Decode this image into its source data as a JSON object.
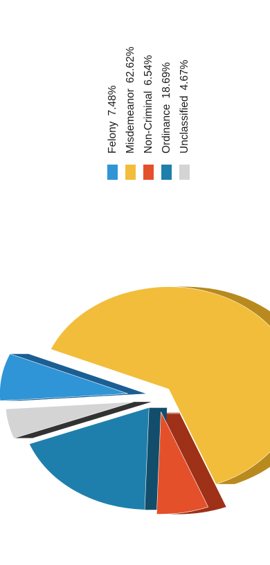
{
  "chart_data": {
    "type": "pie",
    "style": "3d-exploded",
    "orientation": "rotated-90-clockwise",
    "legend_position": "top-right",
    "slices": [
      {
        "label": "Felony",
        "value": 7.48,
        "value_label": "7.48%",
        "color": "#2f95d6",
        "side_color": "#1c5f94"
      },
      {
        "label": "Misdemeanor",
        "value": 62.62,
        "value_label": "62.62%",
        "color": "#f2bd3a",
        "side_color": "#b88a1f"
      },
      {
        "label": "Non-Criminal",
        "value": 6.54,
        "value_label": "6.54%",
        "color": "#e4502a",
        "side_color": "#9e3118"
      },
      {
        "label": "Ordinance",
        "value": 18.69,
        "value_label": "18.69%",
        "color": "#1f7fac",
        "side_color": "#124e6b"
      },
      {
        "label": "Unclassified",
        "value": 4.67,
        "value_label": "4.67%",
        "color": "#d4d4d4",
        "side_color": "#333333"
      }
    ]
  }
}
